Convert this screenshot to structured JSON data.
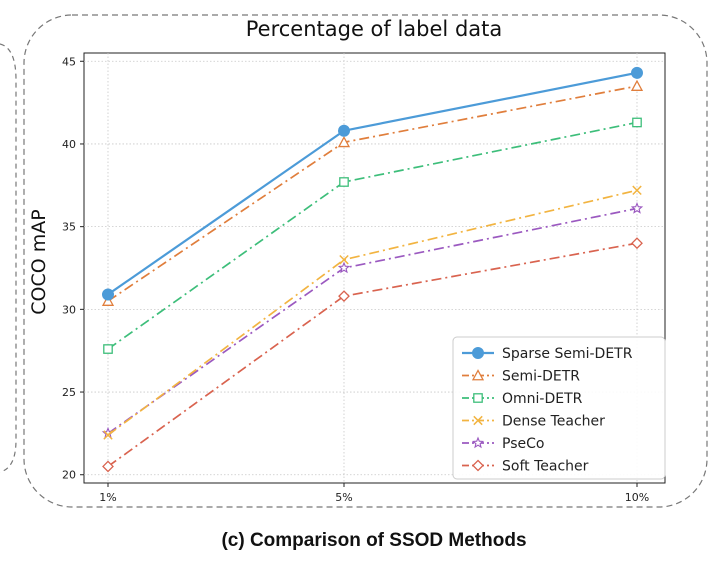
{
  "chart_data": {
    "type": "line",
    "title": "Percentage of label data",
    "xlabel": "",
    "ylabel": "COCO mAP",
    "caption": "(c) Comparison of SSOD Methods",
    "categories": [
      "1%",
      "5%",
      "10%"
    ],
    "ylim": [
      19.5,
      45.5
    ],
    "yticks": [
      20,
      25,
      30,
      35,
      40,
      45
    ],
    "grid": true,
    "legend_position": "lower-right",
    "series": [
      {
        "name": "Sparse Semi-DETR",
        "values": [
          30.9,
          40.8,
          44.3
        ],
        "color": "#4C9BD8",
        "dash": "solid",
        "marker": "circle-filled"
      },
      {
        "name": "Semi-DETR",
        "values": [
          30.5,
          40.1,
          43.5
        ],
        "color": "#E07E3C",
        "dash": "dashdot",
        "marker": "triangle"
      },
      {
        "name": "Omni-DETR",
        "values": [
          27.6,
          37.7,
          41.3
        ],
        "color": "#3DBE7A",
        "dash": "dashdot",
        "marker": "square"
      },
      {
        "name": "Dense Teacher",
        "values": [
          22.4,
          33.0,
          37.2
        ],
        "color": "#F2B441",
        "dash": "dashdot",
        "marker": "x"
      },
      {
        "name": "PseCo",
        "values": [
          22.5,
          32.5,
          36.1
        ],
        "color": "#9B59C0",
        "dash": "dashdot",
        "marker": "star"
      },
      {
        "name": "Soft Teacher",
        "values": [
          20.5,
          30.8,
          34.0
        ],
        "color": "#D9634F",
        "dash": "dashdot",
        "marker": "diamond"
      }
    ]
  }
}
